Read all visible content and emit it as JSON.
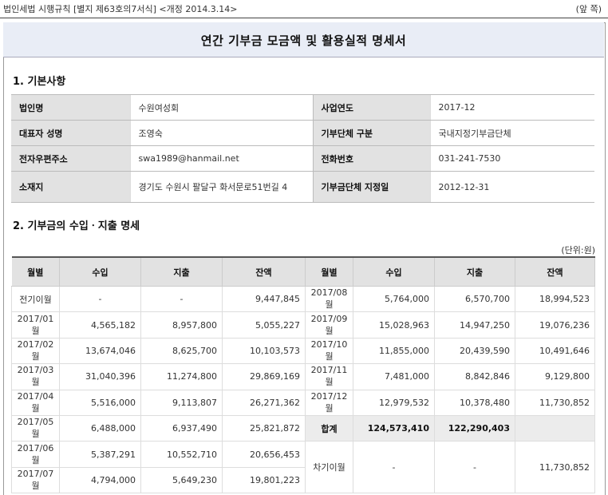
{
  "header": {
    "source": "법인세법 시행규칙 [별지 제63호의7서식] <개정 2014.3.14>",
    "page_side": "(앞 쪽)"
  },
  "title": "연간 기부금 모금액 및 활용실적 명세서",
  "section1": {
    "heading": "1. 기본사항",
    "rows": [
      {
        "label1": "법인명",
        "value1": "수원여성회",
        "label2": "사업연도",
        "value2": "2017-12"
      },
      {
        "label1": "대표자 성명",
        "value1": "조영숙",
        "label2": "기부단체 구분",
        "value2": "국내지정기부금단체"
      },
      {
        "label1": "전자우편주소",
        "value1": "swa1989@hanmail.net",
        "label2": "전화번호",
        "value2": "031-241-7530"
      },
      {
        "label1": "소재지",
        "value1": "경기도 수원시 팔달구 화서문로51번길 4",
        "label2": "기부금단체 지정일",
        "value2": "2012-12-31"
      }
    ]
  },
  "section2": {
    "heading": "2. 기부금의 수입ㆍ지출 명세",
    "unit": "(단위:원)",
    "columns": [
      "월별",
      "수입",
      "지출",
      "잔액",
      "월별",
      "수입",
      "지출",
      "잔액"
    ],
    "rows": [
      [
        "전기이월",
        "-",
        "-",
        "9,447,845",
        "2017/08월",
        "5,764,000",
        "6,570,700",
        "18,994,523"
      ],
      [
        "2017/01월",
        "4,565,182",
        "8,957,800",
        "5,055,227",
        "2017/09월",
        "15,028,963",
        "14,947,250",
        "19,076,236"
      ],
      [
        "2017/02월",
        "13,674,046",
        "8,625,700",
        "10,103,573",
        "2017/10월",
        "11,855,000",
        "20,439,590",
        "10,491,646"
      ],
      [
        "2017/03월",
        "31,040,396",
        "11,274,800",
        "29,869,169",
        "2017/11월",
        "7,481,000",
        "8,842,846",
        "9,129,800"
      ],
      [
        "2017/04월",
        "5,516,000",
        "9,113,807",
        "26,271,362",
        "2017/12월",
        "12,979,532",
        "10,378,480",
        "11,730,852"
      ],
      [
        "2017/05월",
        "6,488,000",
        "6,937,490",
        "25,821,872",
        "합계",
        "124,573,410",
        "122,290,403",
        ""
      ],
      [
        "2017/06월",
        "5,387,291",
        "10,552,710",
        "20,656,453",
        "차기이월",
        "-",
        "-",
        "11,730,852"
      ],
      [
        "2017/07월",
        "4,794,000",
        "5,649,230",
        "19,801,223"
      ]
    ]
  }
}
